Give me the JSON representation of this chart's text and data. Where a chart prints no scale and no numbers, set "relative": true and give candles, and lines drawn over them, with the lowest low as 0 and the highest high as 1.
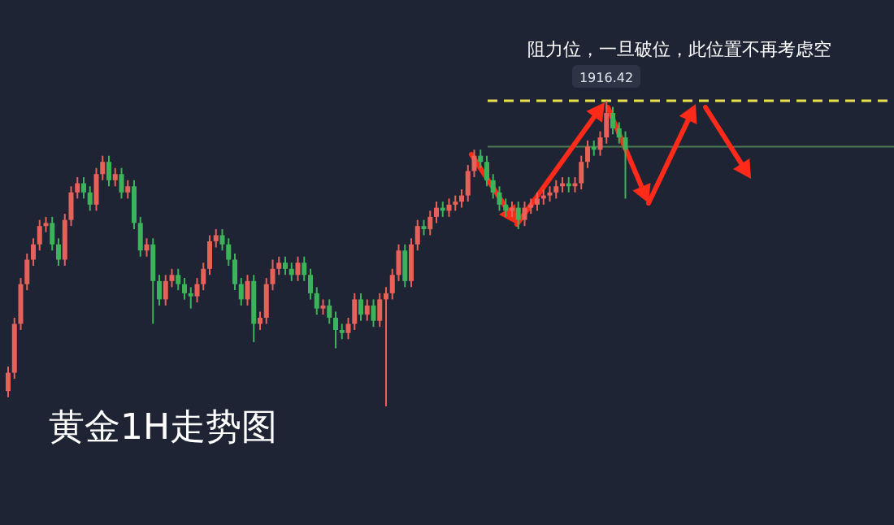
{
  "chart_data": {
    "type": "candlestick",
    "title": "黄金1H走势图",
    "relative": true,
    "annotations": [
      "阻力位，一旦破位，此位置不再考虑空",
      "1916.42"
    ],
    "ref_lines": [
      {
        "axis": "y",
        "value": 1.0,
        "color": "#e8e04a",
        "line_style": "dashed"
      },
      {
        "axis": "y",
        "value": 0.85,
        "color": "#4f7a52",
        "line_style": "solid"
      }
    ],
    "categories": [
      null,
      null,
      null,
      null,
      null,
      null,
      null,
      null,
      null,
      null,
      null,
      null,
      null,
      null,
      null,
      null,
      null,
      null,
      null,
      null,
      null,
      null,
      null,
      null,
      null,
      null,
      null,
      null,
      null,
      null,
      null,
      null,
      null,
      null,
      null,
      null,
      null,
      null,
      null,
      null,
      null,
      null,
      null,
      null,
      null,
      null,
      null,
      null,
      null,
      null,
      null,
      null,
      null,
      null,
      null,
      null,
      null,
      null,
      null,
      null,
      null,
      null,
      null,
      null,
      null,
      null,
      null,
      null,
      null,
      null,
      null,
      null,
      null,
      null,
      null,
      null,
      null,
      null,
      null,
      null,
      null,
      null,
      null,
      null,
      null,
      null,
      null,
      null,
      null,
      null,
      null,
      null,
      null,
      null,
      null,
      null,
      null,
      null,
      null
    ],
    "series": [
      {
        "colors": [
          "#e8605a",
          "#e8605a",
          "#e8605a",
          "#e8605a",
          "#e8605a",
          "#e8605a",
          "#e8605a",
          "#3cb35a",
          "#3cb35a",
          "#e8605a",
          "#e8605a",
          "#e8605a",
          "#3cb35a",
          "#3cb35a",
          "#e8605a",
          "#e8605a",
          "#3cb35a",
          "#e8605a",
          "#3cb35a",
          "#e8605a",
          "#3cb35a",
          "#3cb35a",
          "#e8605a",
          "#3cb35a",
          "#3cb35a",
          "#e8605a",
          "#e8605a",
          "#3cb35a",
          "#3cb35a",
          "#3cb35a",
          "#e8605a",
          "#e8605a",
          "#e8605a",
          "#e8605a",
          "#3cb35a",
          "#3cb35a",
          "#3cb35a",
          "#3cb35a",
          "#e8605a",
          "#3cb35a",
          "#e8605a",
          "#e8605a",
          "#e8605a",
          "#e8605a",
          "#3cb35a",
          "#3cb35a",
          "#e8605a",
          "#3cb35a",
          "#3cb35a",
          "#3cb35a",
          "#e8605a",
          "#3cb35a",
          "#3cb35a",
          "#3cb35a",
          "#e8605a",
          "#e8605a",
          "#3cb35a",
          "#e8605a",
          "#3cb35a",
          "#e8605a",
          "#e8605a",
          "#e8605a",
          "#e8605a",
          "#3cb35a",
          "#e8605a",
          "#e8605a",
          "#3cb35a",
          "#e8605a",
          "#e8605a",
          "#3cb35a",
          "#e8605a",
          "#e8605a",
          "#e8605a",
          "#e8605a",
          "#e8605a",
          "#3cb35a",
          "#3cb35a",
          "#3cb35a",
          "#3cb35a",
          "#3cb35a",
          "#e8605a",
          "#3cb35a",
          "#e8605a",
          "#e8605a",
          "#e8605a",
          "#e8605a",
          "#e8605a",
          "#e8605a",
          "#e8605a",
          "#3cb35a",
          "#e8605a",
          "#e8605a",
          "#e8605a",
          "#3cb35a",
          "#e8605a",
          "#e8605a",
          "#3cb35a",
          "#3cb35a",
          "#3cb35a"
        ],
        "ohlc": [
          [
            0.05,
            0.13,
            0.03,
            0.11
          ],
          [
            0.11,
            0.29,
            0.09,
            0.27
          ],
          [
            0.27,
            0.42,
            0.25,
            0.4
          ],
          [
            0.4,
            0.5,
            0.38,
            0.48
          ],
          [
            0.48,
            0.55,
            0.46,
            0.53
          ],
          [
            0.53,
            0.61,
            0.51,
            0.59
          ],
          [
            0.59,
            0.62,
            0.57,
            0.6
          ],
          [
            0.6,
            0.62,
            0.51,
            0.53
          ],
          [
            0.53,
            0.55,
            0.46,
            0.48
          ],
          [
            0.48,
            0.63,
            0.46,
            0.61
          ],
          [
            0.61,
            0.72,
            0.59,
            0.7
          ],
          [
            0.7,
            0.75,
            0.68,
            0.73
          ],
          [
            0.73,
            0.75,
            0.68,
            0.7
          ],
          [
            0.7,
            0.72,
            0.64,
            0.66
          ],
          [
            0.66,
            0.78,
            0.64,
            0.76
          ],
          [
            0.76,
            0.82,
            0.74,
            0.8
          ],
          [
            0.8,
            0.82,
            0.72,
            0.74
          ],
          [
            0.74,
            0.78,
            0.72,
            0.76
          ],
          [
            0.76,
            0.78,
            0.68,
            0.7
          ],
          [
            0.7,
            0.74,
            0.68,
            0.72
          ],
          [
            0.72,
            0.74,
            0.58,
            0.6
          ],
          [
            0.6,
            0.62,
            0.49,
            0.51
          ],
          [
            0.51,
            0.55,
            0.49,
            0.53
          ],
          [
            0.53,
            0.55,
            0.27,
            0.41
          ],
          [
            0.41,
            0.43,
            0.33,
            0.35
          ],
          [
            0.35,
            0.43,
            0.33,
            0.41
          ],
          [
            0.41,
            0.45,
            0.39,
            0.43
          ],
          [
            0.43,
            0.45,
            0.38,
            0.4
          ],
          [
            0.4,
            0.42,
            0.35,
            0.37
          ],
          [
            0.37,
            0.39,
            0.32,
            0.36
          ],
          [
            0.36,
            0.42,
            0.34,
            0.4
          ],
          [
            0.4,
            0.47,
            0.38,
            0.45
          ],
          [
            0.45,
            0.56,
            0.43,
            0.54
          ],
          [
            0.54,
            0.58,
            0.52,
            0.56
          ],
          [
            0.56,
            0.58,
            0.51,
            0.53
          ],
          [
            0.53,
            0.55,
            0.46,
            0.48
          ],
          [
            0.48,
            0.5,
            0.38,
            0.4
          ],
          [
            0.4,
            0.42,
            0.33,
            0.35
          ],
          [
            0.35,
            0.43,
            0.33,
            0.41
          ],
          [
            0.41,
            0.43,
            0.21,
            0.27
          ],
          [
            0.27,
            0.31,
            0.25,
            0.29
          ],
          [
            0.29,
            0.42,
            0.27,
            0.4
          ],
          [
            0.4,
            0.48,
            0.38,
            0.45
          ],
          [
            0.45,
            0.49,
            0.43,
            0.47
          ],
          [
            0.47,
            0.49,
            0.43,
            0.45
          ],
          [
            0.45,
            0.47,
            0.41,
            0.43
          ],
          [
            0.43,
            0.49,
            0.41,
            0.47
          ],
          [
            0.47,
            0.49,
            0.41,
            0.43
          ],
          [
            0.43,
            0.45,
            0.35,
            0.37
          ],
          [
            0.37,
            0.39,
            0.3,
            0.32
          ],
          [
            0.32,
            0.35,
            0.3,
            0.33
          ],
          [
            0.33,
            0.35,
            0.27,
            0.29
          ],
          [
            0.29,
            0.31,
            0.19,
            0.25
          ],
          [
            0.25,
            0.27,
            0.22,
            0.24
          ],
          [
            0.24,
            0.29,
            0.22,
            0.27
          ],
          [
            0.27,
            0.37,
            0.25,
            0.35
          ],
          [
            0.35,
            0.37,
            0.28,
            0.3
          ],
          [
            0.3,
            0.35,
            0.28,
            0.33
          ],
          [
            0.33,
            0.35,
            0.26,
            0.28
          ],
          [
            0.28,
            0.37,
            0.26,
            0.35
          ],
          [
            0.35,
            0.39,
            0.0,
            0.37
          ],
          [
            0.37,
            0.45,
            0.35,
            0.43
          ],
          [
            0.43,
            0.53,
            0.41,
            0.51
          ],
          [
            0.51,
            0.53,
            0.39,
            0.41
          ],
          [
            0.41,
            0.55,
            0.39,
            0.53
          ],
          [
            0.53,
            0.61,
            0.51,
            0.59
          ],
          [
            0.59,
            0.61,
            0.56,
            0.58
          ],
          [
            0.58,
            0.64,
            0.56,
            0.62
          ],
          [
            0.62,
            0.67,
            0.6,
            0.65
          ],
          [
            0.65,
            0.67,
            0.62,
            0.64
          ],
          [
            0.64,
            0.68,
            0.62,
            0.66
          ],
          [
            0.66,
            0.69,
            0.64,
            0.67
          ],
          [
            0.67,
            0.71,
            0.65,
            0.69
          ],
          [
            0.69,
            0.79,
            0.67,
            0.77
          ],
          [
            0.77,
            0.84,
            0.75,
            0.82
          ],
          [
            0.82,
            0.84,
            0.78,
            0.8
          ],
          [
            0.8,
            0.82,
            0.72,
            0.74
          ],
          [
            0.74,
            0.76,
            0.68,
            0.7
          ],
          [
            0.7,
            0.72,
            0.64,
            0.66
          ],
          [
            0.66,
            0.68,
            0.62,
            0.64
          ],
          [
            0.64,
            0.67,
            0.62,
            0.65
          ],
          [
            0.65,
            0.67,
            0.58,
            0.61
          ],
          [
            0.61,
            0.67,
            0.59,
            0.65
          ],
          [
            0.65,
            0.68,
            0.63,
            0.66
          ],
          [
            0.66,
            0.7,
            0.64,
            0.68
          ],
          [
            0.68,
            0.71,
            0.66,
            0.69
          ],
          [
            0.69,
            0.72,
            0.67,
            0.7
          ],
          [
            0.7,
            0.74,
            0.68,
            0.72
          ],
          [
            0.72,
            0.75,
            0.7,
            0.73
          ],
          [
            0.73,
            0.75,
            0.7,
            0.72
          ],
          [
            0.72,
            0.75,
            0.7,
            0.73
          ],
          [
            0.73,
            0.82,
            0.71,
            0.8
          ],
          [
            0.8,
            0.87,
            0.78,
            0.85
          ],
          [
            0.85,
            0.87,
            0.82,
            0.84
          ],
          [
            0.84,
            0.9,
            0.82,
            0.88
          ],
          [
            0.88,
            1.0,
            0.86,
            0.96
          ],
          [
            0.96,
            0.98,
            0.89,
            0.91
          ],
          [
            0.91,
            0.93,
            0.86,
            0.88
          ],
          [
            0.88,
            0.9,
            0.68,
            0.84
          ]
        ]
      }
    ]
  }
}
